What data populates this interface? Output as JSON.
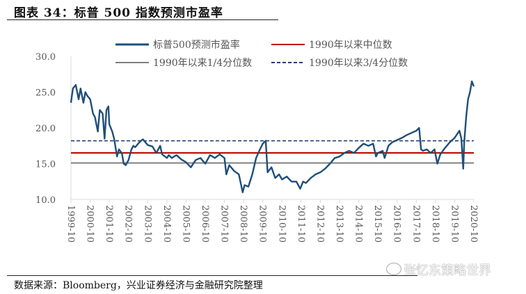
{
  "title": "图表 34：标普 500 指数预测市盈率",
  "source": "数据来源：Bloomberg，兴业证券经济与金融研究院整理",
  "watermark": "张忆东策略世界",
  "colors": {
    "pe": "#1F4E79",
    "median": "#C00000",
    "q1": "#7F7F7F",
    "q3": "#1F3F6F"
  },
  "chart_data": {
    "type": "line",
    "title": "标普500指数预测市盈率",
    "xlabel": "",
    "ylabel": "",
    "ylim": [
      10,
      30
    ],
    "xlim": [
      1999.75,
      2020.75
    ],
    "yticks": [
      "10.0",
      "15.0",
      "20.0",
      "25.0",
      "30.0"
    ],
    "xticks": [
      "1999-10",
      "2000-10",
      "2001-10",
      "2002-10",
      "2003-10",
      "2004-10",
      "2005-10",
      "2006-10",
      "2007-10",
      "2008-10",
      "2009-10",
      "2010-10",
      "2011-10",
      "2012-10",
      "2013-10",
      "2014-10",
      "2015-10",
      "2016-10",
      "2017-10",
      "2018-10",
      "2019-10",
      "2020-10"
    ],
    "legend_position": "top",
    "legend": [
      "标普500预测市盈率",
      "1990年以来中位数",
      "1990年以来1/4分位数",
      "1990年以来3/4分位数"
    ],
    "series": [
      {
        "name": "标普500预测市盈率",
        "x": [
          1999.75,
          1999.85,
          2000.0,
          2000.15,
          2000.25,
          2000.4,
          2000.5,
          2000.6,
          2000.75,
          2000.9,
          2001.0,
          2001.15,
          2001.25,
          2001.4,
          2001.5,
          2001.6,
          2001.7,
          2001.75,
          2001.9,
          2002.0,
          2002.15,
          2002.25,
          2002.4,
          2002.5,
          2002.6,
          2002.75,
          2002.9,
          2003.0,
          2003.1,
          2003.25,
          2003.4,
          2003.5,
          2003.75,
          2004.0,
          2004.2,
          2004.4,
          2004.5,
          2004.75,
          2004.85,
          2005.0,
          2005.25,
          2005.5,
          2005.75,
          2006.0,
          2006.25,
          2006.5,
          2006.75,
          2007.0,
          2007.25,
          2007.5,
          2007.75,
          2007.85,
          2008.0,
          2008.25,
          2008.5,
          2008.7,
          2008.8,
          2009.0,
          2009.2,
          2009.4,
          2009.6,
          2009.75,
          2009.9,
          2010.0,
          2010.2,
          2010.4,
          2010.6,
          2010.75,
          2011.0,
          2011.25,
          2011.5,
          2011.7,
          2011.85,
          2012.0,
          2012.25,
          2012.5,
          2012.75,
          2013.0,
          2013.25,
          2013.5,
          2013.75,
          2014.0,
          2014.25,
          2014.5,
          2014.75,
          2015.0,
          2015.25,
          2015.5,
          2015.65,
          2015.75,
          2016.0,
          2016.1,
          2016.3,
          2016.5,
          2016.75,
          2017.0,
          2017.25,
          2017.5,
          2017.75,
          2017.9,
          2018.0,
          2018.1,
          2018.3,
          2018.5,
          2018.7,
          2018.85,
          2019.0,
          2019.25,
          2019.5,
          2019.75,
          2020.0,
          2020.1,
          2020.2,
          2020.25,
          2020.35,
          2020.45,
          2020.55,
          2020.65,
          2020.75
        ],
        "values": [
          23.5,
          25.5,
          26.0,
          24.0,
          25.5,
          23.5,
          25.0,
          24.5,
          24.0,
          22.0,
          21.5,
          19.5,
          22.5,
          22.0,
          18.5,
          22.5,
          23.0,
          20.5,
          19.5,
          18.5,
          16.0,
          17.0,
          16.5,
          15.0,
          14.8,
          15.5,
          17.0,
          17.5,
          17.3,
          17.8,
          18.2,
          18.4,
          17.6,
          17.4,
          16.5,
          17.5,
          16.3,
          15.8,
          16.2,
          15.8,
          16.2,
          15.6,
          15.2,
          14.5,
          15.5,
          15.8,
          15.0,
          16.2,
          15.8,
          16.3,
          15.8,
          13.5,
          14.8,
          14.0,
          13.5,
          11.0,
          12.0,
          11.8,
          13.5,
          15.8,
          17.0,
          17.8,
          18.2,
          13.8,
          14.5,
          13.0,
          13.5,
          12.8,
          13.2,
          12.5,
          12.5,
          11.5,
          12.5,
          12.3,
          13.0,
          13.5,
          13.8,
          14.3,
          15.0,
          15.8,
          16.0,
          16.5,
          16.8,
          16.5,
          17.2,
          17.8,
          17.5,
          17.8,
          16.0,
          16.5,
          16.8,
          15.8,
          17.5,
          18.0,
          18.3,
          18.6,
          19.0,
          19.3,
          19.6,
          20.0,
          17.0,
          16.8,
          17.0,
          16.5,
          17.0,
          15.0,
          16.3,
          17.2,
          18.0,
          18.6,
          19.6,
          18.5,
          14.3,
          18.0,
          21.5,
          24.0,
          25.0,
          26.5,
          25.8
        ]
      },
      {
        "name": "1990年以来中位数",
        "constant": 16.5
      },
      {
        "name": "1990年以来1/4分位数",
        "constant": 15.1
      },
      {
        "name": "1990年以来3/4分位数",
        "constant": 18.2
      }
    ]
  }
}
